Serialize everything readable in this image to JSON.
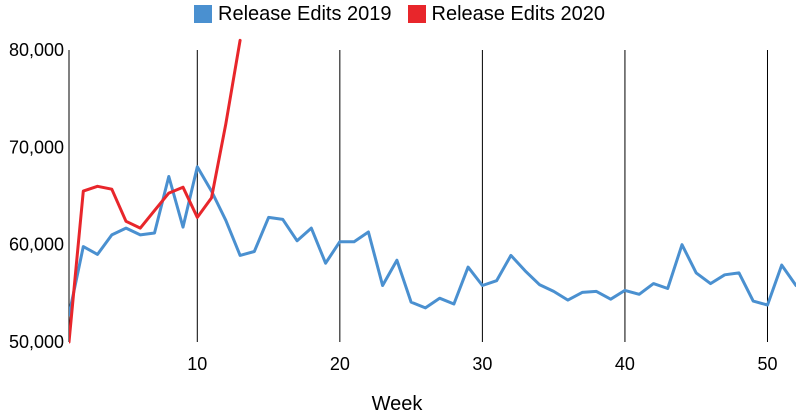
{
  "chart_data": {
    "type": "line",
    "title": "",
    "xlabel": "Week",
    "ylabel": "",
    "xlim": [
      1,
      52
    ],
    "ylim": [
      50000,
      80000
    ],
    "x_ticks": [
      10,
      20,
      30,
      40,
      50
    ],
    "y_ticks": [
      50000,
      60000,
      70000,
      80000
    ],
    "x_tick_labels": [
      "10",
      "20",
      "30",
      "40",
      "50"
    ],
    "y_tick_labels": [
      "50,000",
      "60,000",
      "70,000",
      "80,000"
    ],
    "vertical_gridlines": true,
    "legend_position": "top",
    "series": [
      {
        "name": "Release Edits 2019",
        "color": "#4a90d0",
        "x": [
          1,
          2,
          3,
          4,
          5,
          6,
          7,
          8,
          9,
          10,
          11,
          12,
          13,
          14,
          15,
          16,
          17,
          18,
          19,
          20,
          21,
          22,
          23,
          24,
          25,
          26,
          27,
          28,
          29,
          30,
          31,
          32,
          33,
          34,
          35,
          36,
          37,
          38,
          39,
          40,
          41,
          42,
          43,
          44,
          45,
          46,
          47,
          48,
          49,
          50,
          51,
          52
        ],
        "y": [
          52800,
          59800,
          59000,
          61000,
          61700,
          61000,
          61200,
          67000,
          61800,
          68000,
          65500,
          62500,
          58900,
          59300,
          62800,
          62600,
          60400,
          61700,
          58100,
          60300,
          60300,
          61300,
          55800,
          58400,
          54100,
          53500,
          54500,
          53900,
          57700,
          55800,
          56300,
          58900,
          57300,
          55900,
          55200,
          54300,
          55100,
          55200,
          54400,
          55300,
          54900,
          56000,
          55500,
          60000,
          57100,
          56000,
          56900,
          57100,
          54200,
          53800,
          57900,
          55800
        ]
      },
      {
        "name": "Release Edits 2020",
        "color": "#e8262b",
        "x": [
          1,
          2,
          3,
          4,
          5,
          6,
          7,
          8,
          9,
          10,
          11,
          12,
          13
        ],
        "y": [
          50000,
          65500,
          66000,
          65700,
          62400,
          61700,
          63500,
          65300,
          65900,
          62800,
          64800,
          72400,
          81000
        ]
      }
    ]
  }
}
